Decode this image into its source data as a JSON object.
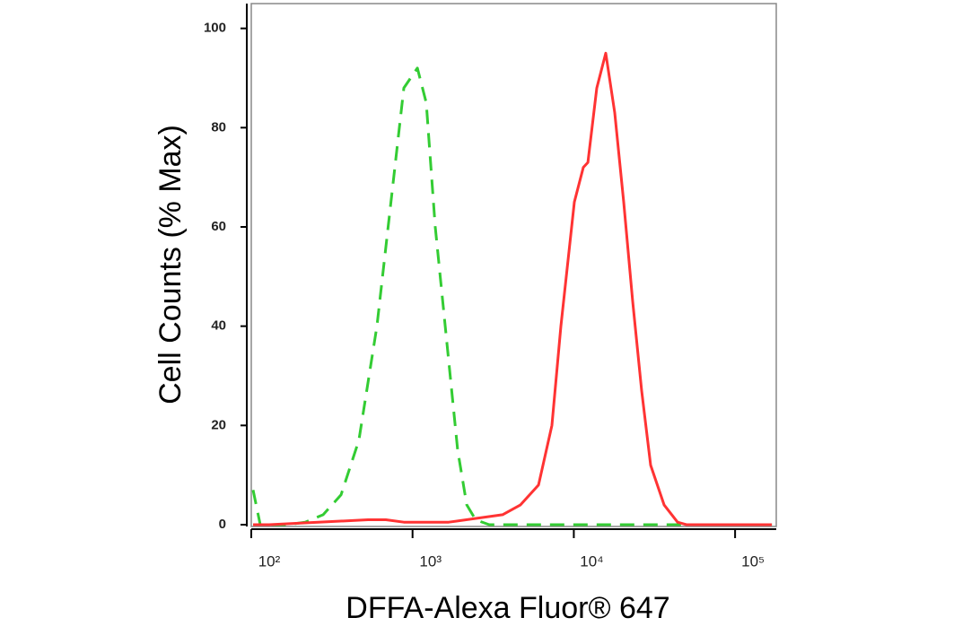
{
  "chart_data": {
    "type": "line",
    "xlabel": "DFFA-Alexa Fluor® 647",
    "ylabel": "Cell Counts (% Max)",
    "xscale": "log",
    "xlim": [
      100,
      180000
    ],
    "ylim": [
      0,
      105
    ],
    "xticks": [
      {
        "value": 100,
        "label": "10²"
      },
      {
        "value": 1000,
        "label": "10³"
      },
      {
        "value": 10000,
        "label": "10⁴"
      },
      {
        "value": 100000,
        "label": "10⁵"
      }
    ],
    "yticks": [
      0,
      20,
      40,
      60,
      80,
      100
    ],
    "series": [
      {
        "color": "#33cc33",
        "dashed": true,
        "x": [
          102.6,
          113.6,
          167,
          216,
          279,
          360,
          465,
          601,
          777,
          883,
          1071,
          1217,
          1383,
          1676,
          1906,
          2168,
          2462,
          2985,
          6039,
          21730,
          169000
        ],
        "values": [
          7,
          0,
          0,
          0.5,
          2,
          6,
          17,
          40,
          72,
          88,
          92,
          85,
          60,
          33,
          15,
          4,
          1,
          0,
          0,
          0,
          0
        ]
      },
      {
        "color": "#ff3333",
        "dashed": false,
        "x": [
          102.6,
          129,
          529,
          683,
          883,
          1676,
          3614,
          4670,
          6039,
          7310,
          8316,
          10080,
          11450,
          12220,
          13880,
          15780,
          17940,
          20380,
          23170,
          26330,
          29920,
          36290,
          43950,
          50000,
          169000
        ],
        "values": [
          0,
          0,
          1,
          1,
          0.5,
          0.5,
          2,
          4,
          8,
          20,
          40,
          65,
          72,
          73,
          88,
          95,
          83,
          65,
          45,
          27,
          12,
          4,
          0.5,
          0,
          0
        ]
      }
    ]
  }
}
